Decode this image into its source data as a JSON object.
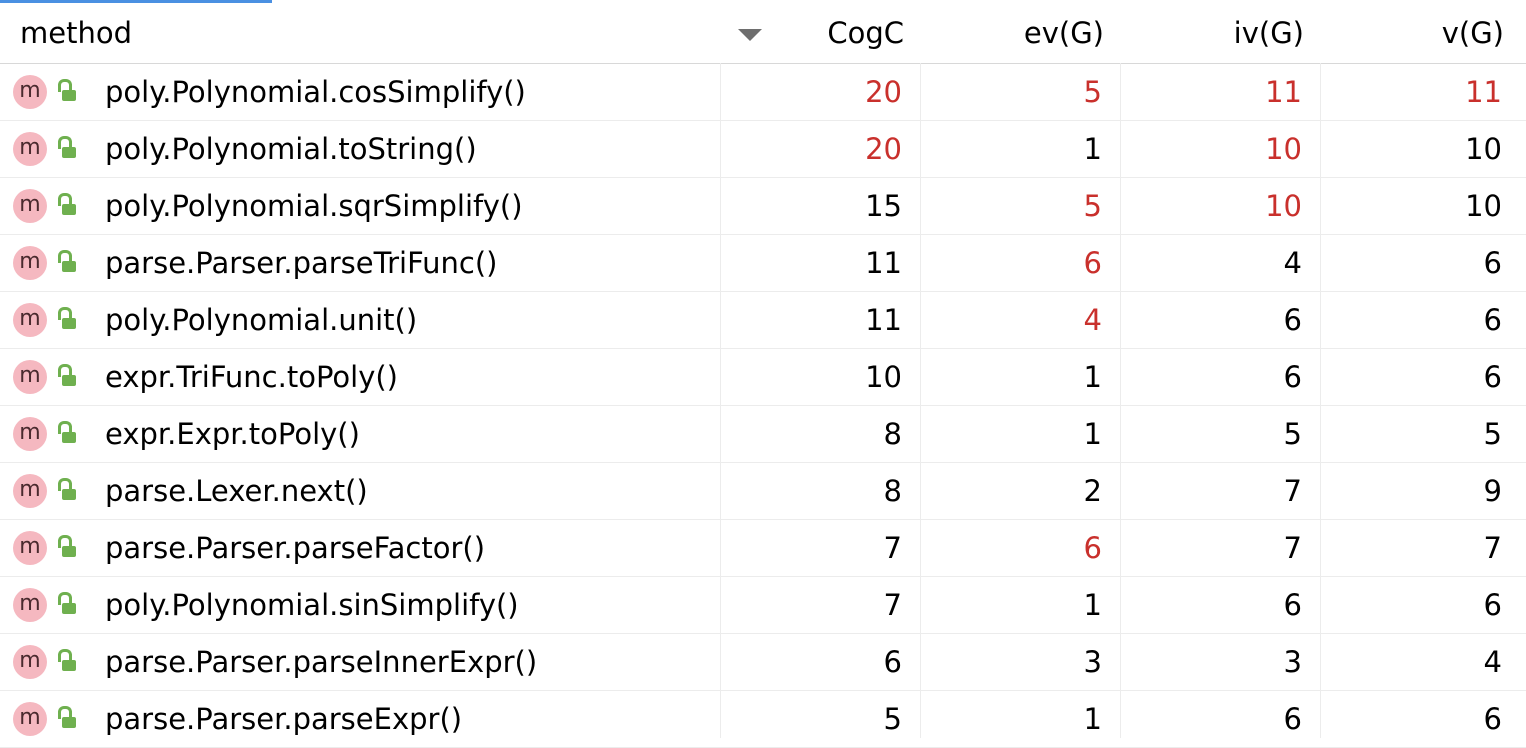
{
  "header": {
    "method": "method",
    "cogc": "CogC",
    "ev": "ev(G)",
    "iv": "iv(G)",
    "v": "v(G)"
  },
  "icons": {
    "method_icon_letter": "m",
    "method_icon_color": "#f5b8c0",
    "lock_icon_color": "#6fb04f",
    "highlight_color": "#c9302c"
  },
  "rows": [
    {
      "method": "poly.Polynomial.cosSimplify()",
      "cogc": "20",
      "ev": "5",
      "iv": "11",
      "v": "11",
      "hot": {
        "cogc": true,
        "ev": true,
        "iv": true,
        "v": true
      }
    },
    {
      "method": "poly.Polynomial.toString()",
      "cogc": "20",
      "ev": "1",
      "iv": "10",
      "v": "10",
      "hot": {
        "cogc": true,
        "ev": false,
        "iv": true,
        "v": false
      }
    },
    {
      "method": "poly.Polynomial.sqrSimplify()",
      "cogc": "15",
      "ev": "5",
      "iv": "10",
      "v": "10",
      "hot": {
        "cogc": false,
        "ev": true,
        "iv": true,
        "v": false
      }
    },
    {
      "method": "parse.Parser.parseTriFunc()",
      "cogc": "11",
      "ev": "6",
      "iv": "4",
      "v": "6",
      "hot": {
        "cogc": false,
        "ev": true,
        "iv": false,
        "v": false
      }
    },
    {
      "method": "poly.Polynomial.unit()",
      "cogc": "11",
      "ev": "4",
      "iv": "6",
      "v": "6",
      "hot": {
        "cogc": false,
        "ev": true,
        "iv": false,
        "v": false
      }
    },
    {
      "method": "expr.TriFunc.toPoly()",
      "cogc": "10",
      "ev": "1",
      "iv": "6",
      "v": "6",
      "hot": {
        "cogc": false,
        "ev": false,
        "iv": false,
        "v": false
      }
    },
    {
      "method": "expr.Expr.toPoly()",
      "cogc": "8",
      "ev": "1",
      "iv": "5",
      "v": "5",
      "hot": {
        "cogc": false,
        "ev": false,
        "iv": false,
        "v": false
      }
    },
    {
      "method": "parse.Lexer.next()",
      "cogc": "8",
      "ev": "2",
      "iv": "7",
      "v": "9",
      "hot": {
        "cogc": false,
        "ev": false,
        "iv": false,
        "v": false
      }
    },
    {
      "method": "parse.Parser.parseFactor()",
      "cogc": "7",
      "ev": "6",
      "iv": "7",
      "v": "7",
      "hot": {
        "cogc": false,
        "ev": true,
        "iv": false,
        "v": false
      }
    },
    {
      "method": "poly.Polynomial.sinSimplify()",
      "cogc": "7",
      "ev": "1",
      "iv": "6",
      "v": "6",
      "hot": {
        "cogc": false,
        "ev": false,
        "iv": false,
        "v": false
      }
    },
    {
      "method": "parse.Parser.parseInnerExpr()",
      "cogc": "6",
      "ev": "3",
      "iv": "3",
      "v": "4",
      "hot": {
        "cogc": false,
        "ev": false,
        "iv": false,
        "v": false
      }
    },
    {
      "method": "parse.Parser.parseExpr()",
      "cogc": "5",
      "ev": "1",
      "iv": "6",
      "v": "6",
      "hot": {
        "cogc": false,
        "ev": false,
        "iv": false,
        "v": false
      }
    }
  ]
}
